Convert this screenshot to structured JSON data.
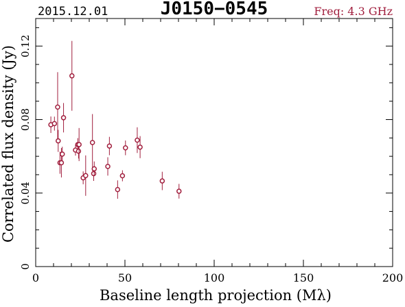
{
  "header": {
    "date": "2015.12.01",
    "source": "J0150−0545",
    "freq": "Freq: 4.3 GHz"
  },
  "colors": {
    "data": "#a01d3c",
    "axis": "#000000",
    "background": "#ffffff"
  },
  "chart_data": {
    "type": "scatter",
    "xlabel": "Baseline length projection (Mλ)",
    "ylabel": "Correlated flux density (Jy)",
    "xlim": [
      0,
      200
    ],
    "ylim": [
      0,
      0.135
    ],
    "xticks": [
      0,
      50,
      100,
      150,
      200
    ],
    "xtick_labels": [
      "0",
      "50",
      "100",
      "150",
      "200"
    ],
    "yticks": [
      0,
      0.04,
      0.08,
      0.12
    ],
    "ytick_labels": [
      "0",
      "0.04",
      "0.08",
      "0.12"
    ],
    "grid": false,
    "series": [
      {
        "points": [
          {
            "x": 8.5,
            "y": 0.0772,
            "err": 0.0045
          },
          {
            "x": 10.5,
            "y": 0.0778,
            "err": 0.0038
          },
          {
            "x": 12.3,
            "y": 0.0868,
            "err": 0.019
          },
          {
            "x": 12.6,
            "y": 0.0684,
            "err": 0.006
          },
          {
            "x": 13.6,
            "y": 0.0565,
            "err": 0.006
          },
          {
            "x": 14.4,
            "y": 0.0565,
            "err": 0.008
          },
          {
            "x": 14.9,
            "y": 0.0612,
            "err": 0.004
          },
          {
            "x": 15.6,
            "y": 0.081,
            "err": 0.008
          },
          {
            "x": 20.3,
            "y": 0.1038,
            "err": 0.019
          },
          {
            "x": 22.3,
            "y": 0.0634,
            "err": 0.003
          },
          {
            "x": 23.6,
            "y": 0.0664,
            "err": 0.0035
          },
          {
            "x": 24.0,
            "y": 0.0628,
            "err": 0.004
          },
          {
            "x": 24.3,
            "y": 0.0664,
            "err": 0.009
          },
          {
            "x": 26.6,
            "y": 0.0483,
            "err": 0.0035
          },
          {
            "x": 28.0,
            "y": 0.0495,
            "err": 0.011
          },
          {
            "x": 31.8,
            "y": 0.0675,
            "err": 0.0155
          },
          {
            "x": 32.5,
            "y": 0.0506,
            "err": 0.004
          },
          {
            "x": 32.8,
            "y": 0.0532,
            "err": 0.004
          },
          {
            "x": 40.4,
            "y": 0.0545,
            "err": 0.005
          },
          {
            "x": 41.3,
            "y": 0.0656,
            "err": 0.005
          },
          {
            "x": 45.9,
            "y": 0.0419,
            "err": 0.005
          },
          {
            "x": 48.6,
            "y": 0.0494,
            "err": 0.003
          },
          {
            "x": 50.3,
            "y": 0.0646,
            "err": 0.004
          },
          {
            "x": 56.9,
            "y": 0.0688,
            "err": 0.007
          },
          {
            "x": 58.5,
            "y": 0.065,
            "err": 0.006
          },
          {
            "x": 70.9,
            "y": 0.0466,
            "err": 0.005
          },
          {
            "x": 80.3,
            "y": 0.041,
            "err": 0.004
          }
        ]
      }
    ]
  }
}
